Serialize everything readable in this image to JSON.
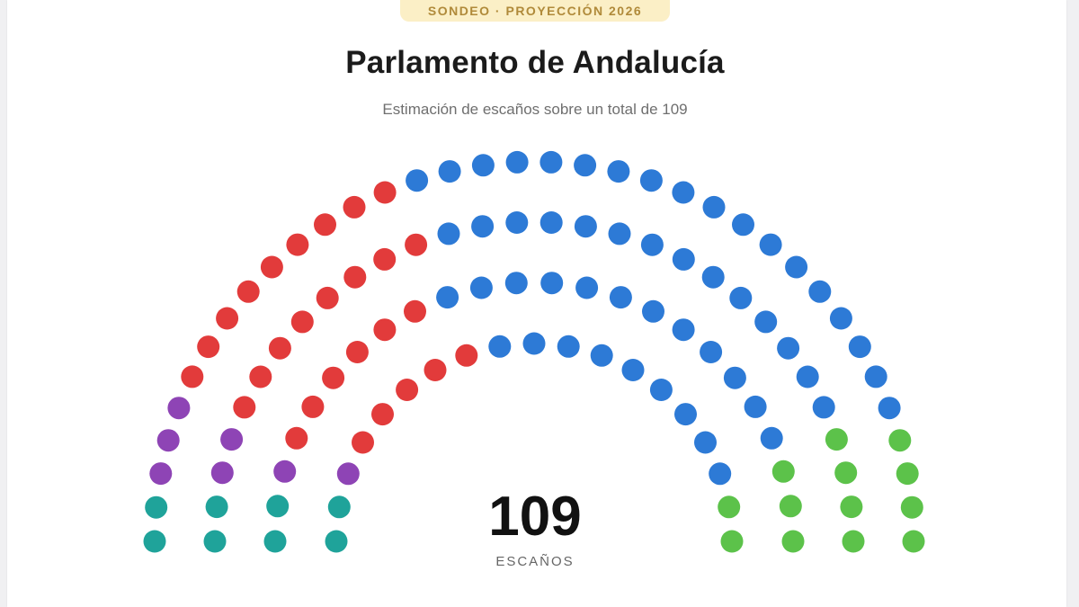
{
  "badge": "SONDEO · PROYECCIÓN 2026",
  "header": {
    "title": "Parlamento de Andalucía",
    "subtitle": "Estimación de escaños sobre un total de 109"
  },
  "center": {
    "total": "109",
    "label": "ESCAÑOS"
  },
  "chart_data": {
    "type": "hemicycle",
    "total_seats": 109,
    "rows": 4,
    "groups": [
      {
        "color": "#1fa39a",
        "seats": 8
      },
      {
        "color": "#8e44b5",
        "seats": 7
      },
      {
        "color": "#e23b3b",
        "seats": 28
      },
      {
        "color": "#2d7ad6",
        "seats": 53
      },
      {
        "color": "#5cc24a",
        "seats": 13
      }
    ]
  }
}
